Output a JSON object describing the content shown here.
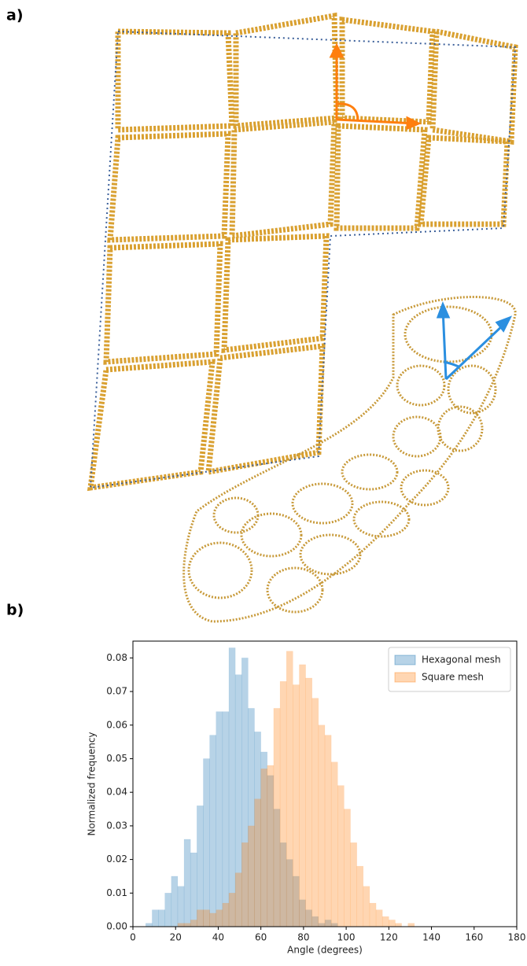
{
  "panel_labels": [
    "a)",
    "b)"
  ],
  "chart_data": {
    "type": "histogram",
    "xlabel": "Angle (degrees)",
    "ylabel": "Normalized frequency",
    "bins": [
      6,
      9,
      12,
      15,
      18,
      21,
      24,
      27,
      30,
      33,
      36,
      39,
      42,
      45,
      48,
      51,
      54,
      57,
      60,
      63,
      66,
      69,
      72,
      75,
      78,
      81,
      84,
      87,
      90,
      93,
      96,
      99,
      102,
      105,
      108,
      111,
      114,
      117,
      120,
      123,
      126,
      129,
      132
    ],
    "series": [
      {
        "name": "Hexagonal mesh",
        "color": "#1f77b4",
        "values": [
          0.001,
          0.005,
          0.005,
          0.01,
          0.015,
          0.012,
          0.026,
          0.022,
          0.036,
          0.05,
          0.057,
          0.064,
          0.064,
          0.083,
          0.075,
          0.08,
          0.065,
          0.058,
          0.052,
          0.045,
          0.035,
          0.025,
          0.02,
          0.015,
          0.008,
          0.005,
          0.003,
          0.001,
          0.002,
          0.001,
          0,
          0,
          0,
          0,
          0,
          0,
          0,
          0,
          0,
          0,
          0,
          0
        ]
      },
      {
        "name": "Square mesh",
        "color": "#ff7f0e",
        "values": [
          0,
          0,
          0,
          0,
          0,
          0.001,
          0.001,
          0.002,
          0.005,
          0.005,
          0.004,
          0.005,
          0.007,
          0.01,
          0.016,
          0.025,
          0.03,
          0.038,
          0.047,
          0.048,
          0.065,
          0.073,
          0.082,
          0.072,
          0.078,
          0.074,
          0.068,
          0.06,
          0.057,
          0.049,
          0.042,
          0.035,
          0.025,
          0.018,
          0.012,
          0.007,
          0.005,
          0.003,
          0.002,
          0.001,
          0,
          0.001
        ]
      }
    ],
    "xlim": [
      0,
      180
    ],
    "xticks": [
      0,
      20,
      40,
      60,
      80,
      100,
      120,
      140,
      160,
      180
    ],
    "ylim": [
      0,
      0.085
    ],
    "yticks": [
      {
        "value": 0,
        "label": "0.00"
      },
      {
        "value": 0.01,
        "label": "0.01"
      },
      {
        "value": 0.02,
        "label": "0.02"
      },
      {
        "value": 0.03,
        "label": "0.03"
      },
      {
        "value": 0.04,
        "label": "0.04"
      },
      {
        "value": 0.05,
        "label": "0.05"
      },
      {
        "value": 0.06,
        "label": "0.06"
      },
      {
        "value": 0.07,
        "label": "0.07"
      },
      {
        "value": 0.08,
        "label": "0.08"
      }
    ],
    "legend": "upper right"
  }
}
